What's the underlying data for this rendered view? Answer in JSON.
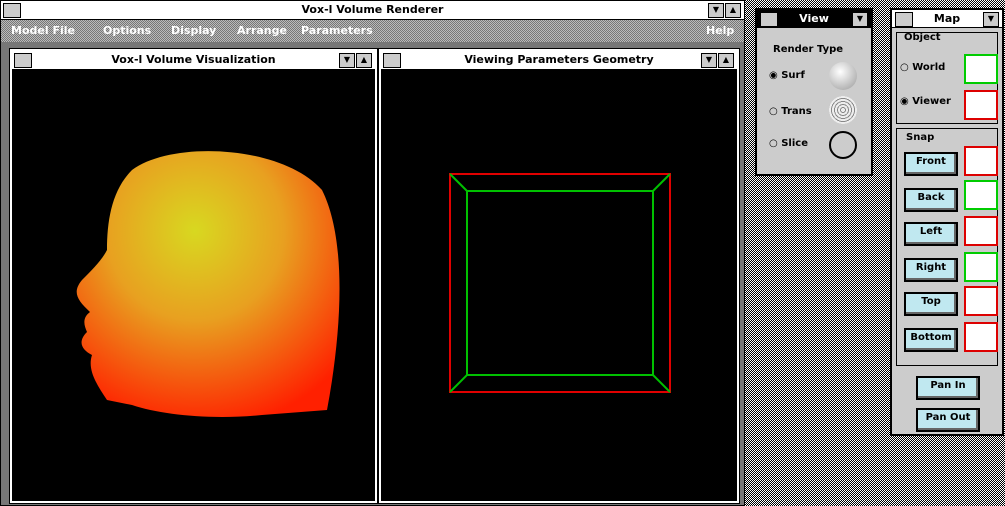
{
  "window": {
    "title": "Vox-l Volume Renderer",
    "menu": [
      "Model File",
      "Options",
      "Display",
      "Arrange",
      "Parameters",
      "Help"
    ]
  },
  "children": [
    {
      "title": "Vox-l Volume Visualization"
    },
    {
      "title": "Viewing Parameters Geometry"
    }
  ],
  "view_panel": {
    "title": "View",
    "render_type_label": "Render Type",
    "options": [
      "Surf",
      "Trans",
      "Slice"
    ]
  },
  "map_panel": {
    "title": "Map",
    "object_label": "Object",
    "object_options": [
      "World",
      "Viewer"
    ],
    "snap_label": "Snap",
    "snap_buttons": [
      "Front",
      "Back",
      "Left",
      "Right",
      "Top",
      "Bottom"
    ],
    "pan_buttons": [
      "Pan In",
      "Pan Out"
    ]
  }
}
